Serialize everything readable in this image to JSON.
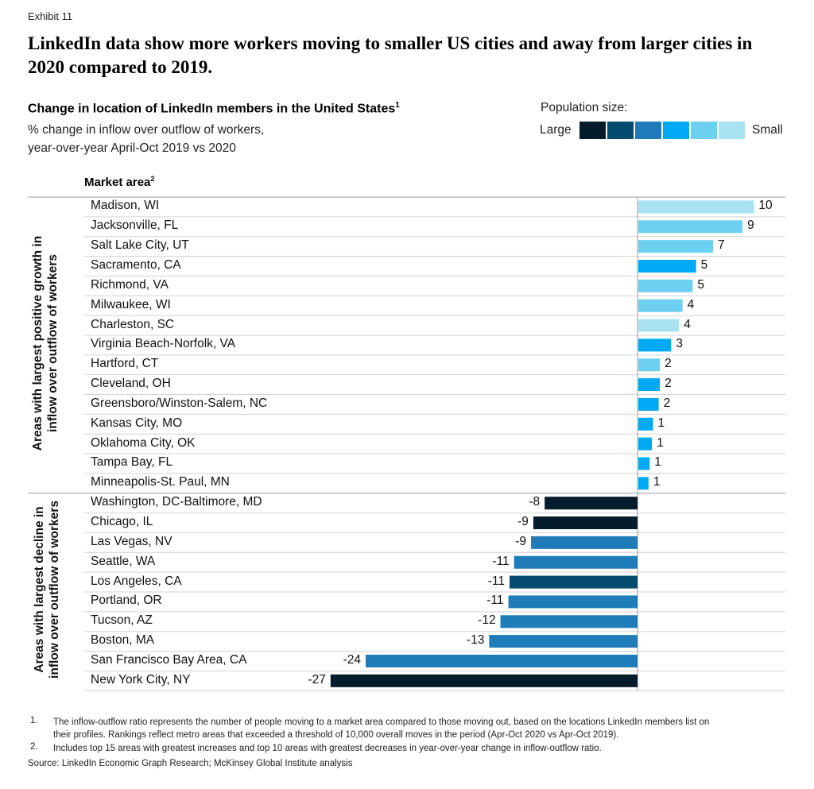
{
  "exhibit": "Exhibit 11",
  "title": "LinkedIn data show more workers moving to smaller US cities and away from larger cities in 2020 compared to 2019.",
  "subtitle": "Change in location of LinkedIn members in the United States",
  "subtitle_note": "1",
  "description_line1": "% change in inflow over outflow of workers,",
  "description_line2": "year-over-year  April-Oct 2019 vs 2020",
  "legend": {
    "title": "Population size:",
    "large_label": "Large",
    "small_label": "Small",
    "colors": [
      "#051c2c",
      "#034b6f",
      "#1f7cb8",
      "#00a9f4",
      "#6ed0f0",
      "#a8e2f0"
    ]
  },
  "market_area_header": "Market area",
  "market_area_note": "2",
  "group_labels": {
    "growth": "Areas with largest positive growth in inflow over outflow of workers",
    "decline": "Areas with largest decline in inflow over outflow of workers"
  },
  "chart_data": {
    "type": "bar",
    "orientation": "horizontal",
    "title": "Change in location of LinkedIn members in the United States",
    "xlabel": "% change in inflow over outflow of workers, year-over-year April-Oct 2019 vs 2020",
    "ylabel": "Market area",
    "categories": [
      "Madison, WI",
      "Jacksonville, FL",
      "Salt Lake City, UT",
      "Sacramento, CA",
      "Richmond, VA",
      "Milwaukee, WI",
      "Charleston, SC",
      "Virginia Beach-Norfolk, VA",
      "Hartford, CT",
      "Cleveland, OH",
      "Greensboro/Winston-Salem, NC",
      "Kansas City, MO",
      "Oklahoma City, OK",
      "Tampa Bay, FL",
      "Minneapolis-St. Paul, MN",
      "Washington, DC-Baltimore, MD",
      "Chicago, IL",
      "Las Vegas, NV",
      "Seattle, WA",
      "Los Angeles, CA",
      "Portland, OR",
      "Tucson, AZ",
      "Boston, MA",
      "San Francisco Bay Area, CA",
      "New York City, NY"
    ],
    "values": [
      10,
      9,
      7,
      5,
      5,
      4,
      4,
      3,
      2,
      2,
      2,
      1,
      1,
      1,
      1,
      -8,
      -9,
      -9,
      -11,
      -11,
      -11,
      -12,
      -13,
      -24,
      -27
    ],
    "bar_values_precise": [
      10.2,
      9.2,
      6.6,
      5.1,
      4.8,
      3.9,
      3.6,
      2.9,
      1.9,
      1.9,
      1.8,
      1.3,
      1.2,
      1.0,
      0.9,
      -8.2,
      -9.2,
      -9.4,
      -10.9,
      -11.3,
      -11.4,
      -12.1,
      -13.1,
      -24.0,
      -27.1
    ],
    "value_labels": [
      "10",
      "9",
      "7",
      "5",
      "5",
      "4",
      "4",
      "3",
      "2",
      "2",
      "2",
      "1",
      "1",
      "1",
      "1",
      "-8",
      "-9",
      "-9",
      "-11",
      "-11",
      "-11",
      "-12",
      "-13",
      "-24",
      "-27"
    ],
    "population_class": [
      6,
      5,
      5,
      4,
      5,
      5,
      6,
      4,
      5,
      4,
      4,
      4,
      4,
      4,
      4,
      1,
      1,
      3,
      3,
      2,
      3,
      3,
      3,
      3,
      1
    ],
    "groups": [
      {
        "name": "Areas with largest positive growth in inflow over outflow of workers",
        "count": 15
      },
      {
        "name": "Areas with largest decline in inflow over outflow of workers",
        "count": 10
      }
    ],
    "xlim": [
      -27.5,
      10.2
    ]
  },
  "footnotes": [
    {
      "num": "1.",
      "line1": "The inflow-outflow ratio represents the number of people moving to a market area compared to those moving out, based on the locations LinkedIn members list on",
      "line2": "their profiles. Rankings reflect metro areas that exceeded a threshold of 10,000 overall moves in the period (Apr-Oct 2020 vs Apr-Oct 2019)."
    },
    {
      "num": "2.",
      "line1": "Includes top 15 areas with greatest increases and top 10 areas with greatest decreases in year-over-year change in inflow-outflow ratio."
    }
  ],
  "source": "Source: LinkedIn Economic Graph Research; McKinsey Global Institute analysis"
}
